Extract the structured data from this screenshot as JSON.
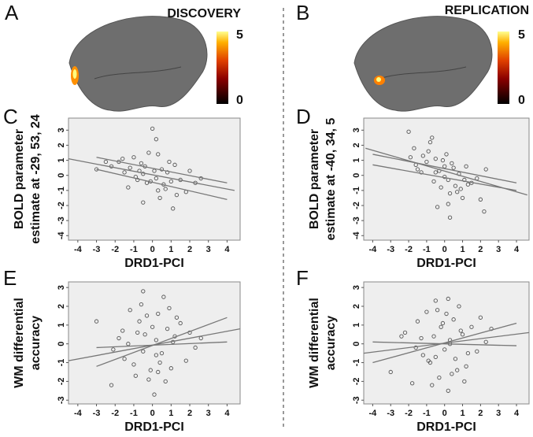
{
  "brain_maps": [
    {
      "letter": "A",
      "title": "DISCOVERY",
      "colorbar_ticks": [
        5,
        0
      ]
    },
    {
      "letter": "B",
      "title": "REPLICATION",
      "colorbar_ticks": [
        5,
        0
      ]
    }
  ],
  "chart_data": [
    {
      "type": "scatter",
      "letter": "C",
      "xlabel": "DRD1-PCI",
      "ylabel": [
        "BOLD parameter",
        "estimate at -29, 53, 24"
      ],
      "xlim": [
        -4.5,
        4.7
      ],
      "ylim": [
        -4.3,
        3.8
      ],
      "xticks": [
        -4,
        -3,
        -2,
        -1,
        0,
        1,
        2,
        3,
        4
      ],
      "yticks": [
        -4,
        -3,
        -2,
        -1,
        0,
        1,
        2,
        3
      ],
      "series": [
        {
          "color": "#555555",
          "x": [
            -3,
            -2.2,
            -1.8,
            -1.5,
            -1.2,
            -1,
            -0.8,
            -0.6,
            -0.5,
            -0.3,
            -0.2,
            0,
            0.1,
            0.2,
            0.3,
            0.5,
            0.6,
            0.8,
            1,
            1.2,
            1.5,
            1.8,
            2,
            2.3,
            -0.9,
            -0.4,
            0.4,
            0.9,
            -1.3,
            0.2,
            -0.7,
            1.3,
            -0.1,
            0.7,
            -1.6,
            2.6,
            -0.5,
            0.3,
            1.1,
            -2.5
          ],
          "values": [
            0.4,
            0.6,
            0.9,
            0.2,
            0.5,
            1.2,
            -0.3,
            0.8,
            0.1,
            -0.5,
            1.5,
            3.1,
            0.3,
            -0.2,
            -1,
            0.4,
            -0.6,
            0.2,
            -0.4,
            0.7,
            -0.3,
            -1.1,
            0.3,
            -0.5,
            -0.1,
            0.6,
            -1.5,
            0.9,
            -0.8,
            2.4,
            0.3,
            -1.3,
            -0.4,
            -0.9,
            1.1,
            -0.2,
            -1.8,
            1.4,
            -2.2,
            0.9
          ]
        }
      ],
      "lines": [
        {
          "color": "#777777",
          "x": [
            -4.5,
            4.4
          ],
          "values": [
            1.1,
            -1.0
          ]
        },
        {
          "color": "#777777",
          "x": [
            -3,
            4
          ],
          "values": [
            1.2,
            -0.5
          ]
        },
        {
          "color": "#777777",
          "x": [
            -3,
            4
          ],
          "values": [
            0.4,
            -1.6
          ]
        }
      ]
    },
    {
      "type": "scatter",
      "letter": "D",
      "xlabel": "DRD1-PCI",
      "ylabel": [
        "BOLD parameter",
        "estimate at -40, 34, 5"
      ],
      "xlim": [
        -4.5,
        4.7
      ],
      "ylim": [
        -4.3,
        3.8
      ],
      "xticks": [
        -4,
        -3,
        -2,
        -1,
        0,
        1,
        2,
        3,
        4
      ],
      "yticks": [
        -4,
        -3,
        -2,
        -1,
        0,
        1,
        2,
        3
      ],
      "series": [
        {
          "color": "#555555",
          "x": [
            -2,
            -1.7,
            -1.5,
            -1.2,
            -1,
            -0.8,
            -0.6,
            -0.5,
            -0.3,
            -0.2,
            0,
            0.1,
            0.2,
            0.3,
            0.5,
            0.6,
            0.8,
            1,
            1.2,
            1.5,
            1.8,
            2,
            2.3,
            -0.9,
            -0.4,
            0.4,
            0.9,
            -1.3,
            0.2,
            -0.7,
            1.3,
            -0.1,
            0.7,
            -1.6,
            2.2,
            -0.5,
            0.3,
            1.1,
            -1.9,
            0.0
          ],
          "values": [
            2.9,
            1.8,
            0.4,
            1.3,
            0.9,
            2.2,
            -0.4,
            1.1,
            0.3,
            -0.8,
            0.6,
            1.4,
            -0.3,
            -1.2,
            0.5,
            -0.7,
            0.1,
            -1.5,
            0.6,
            -0.5,
            -0.2,
            -1.6,
            0.4,
            1.6,
            -2.1,
            0.8,
            -0.9,
            0.2,
            -1.9,
            2.5,
            -0.6,
            1.0,
            -1.1,
            0.7,
            -2.4,
            0.2,
            -2.8,
            -0.3,
            1.2,
            -0.1
          ]
        }
      ],
      "lines": [
        {
          "color": "#777777",
          "x": [
            -4.4,
            4.6
          ],
          "values": [
            1.8,
            -1.3
          ]
        },
        {
          "color": "#777777",
          "x": [
            -4,
            4
          ],
          "values": [
            1.4,
            -0.5
          ]
        },
        {
          "color": "#777777",
          "x": [
            -4,
            4
          ],
          "values": [
            0.7,
            -1.0
          ]
        }
      ]
    },
    {
      "type": "scatter",
      "letter": "E",
      "xlabel": "DRD1-PCI",
      "ylabel": [
        "WM differential",
        "accuracy"
      ],
      "xlim": [
        -4.5,
        4.7
      ],
      "ylim": [
        -3.2,
        3.3
      ],
      "xticks": [
        -4,
        -3,
        -2,
        -1,
        0,
        1,
        2,
        3,
        4
      ],
      "yticks": [
        -3,
        -2,
        -1,
        0,
        1,
        2,
        3
      ],
      "series": [
        {
          "color": "#555555",
          "x": [
            -3,
            -2.2,
            -1.8,
            -1.5,
            -1.2,
            -1,
            -0.8,
            -0.6,
            -0.5,
            -0.3,
            -0.2,
            0,
            0.1,
            0.2,
            0.3,
            0.5,
            0.6,
            0.8,
            1,
            1.2,
            1.5,
            1.8,
            2,
            2.3,
            -0.9,
            -0.4,
            0.4,
            0.9,
            -1.3,
            0.2,
            -0.7,
            1.3,
            -0.1,
            0.7,
            -1.6,
            2.6,
            -0.5,
            0.3,
            1.1,
            -2.1
          ],
          "values": [
            1.2,
            -2.2,
            0.3,
            -0.8,
            1.8,
            -1.1,
            0.6,
            2.1,
            -0.4,
            1.5,
            -1.9,
            0.9,
            -2.7,
            0.2,
            1.6,
            -0.5,
            2.5,
            0.8,
            -1.3,
            0.4,
            1.1,
            -0.9,
            0.6,
            -0.2,
            -1.7,
            0.5,
            -1.0,
            1.9,
            0.0,
            -0.6,
            1.2,
            1.4,
            -1.4,
            -2.0,
            0.7,
            0.3,
            2.8,
            -1.5,
            0.1,
            -0.3
          ]
        }
      ],
      "lines": [
        {
          "color": "#777777",
          "x": [
            -4.5,
            4.7
          ],
          "values": [
            -0.9,
            0.8
          ]
        },
        {
          "color": "#777777",
          "x": [
            -3,
            4
          ],
          "values": [
            -1.2,
            1.4
          ]
        },
        {
          "color": "#777777",
          "x": [
            -3,
            4
          ],
          "values": [
            -0.2,
            0.1
          ]
        }
      ]
    },
    {
      "type": "scatter",
      "letter": "F",
      "xlabel": "DRD1-PCI",
      "ylabel": [
        "WM differential",
        "accuracy"
      ],
      "xlim": [
        -4.5,
        4.7
      ],
      "ylim": [
        -3.2,
        3.3
      ],
      "xticks": [
        -4,
        -3,
        -2,
        -1,
        0,
        1,
        2,
        3,
        4
      ],
      "yticks": [
        -3,
        -2,
        -1,
        0,
        1,
        2,
        3
      ],
      "series": [
        {
          "color": "#555555",
          "x": [
            -3,
            -2.2,
            -1.8,
            -1.5,
            -1.2,
            -1,
            -0.8,
            -0.6,
            -0.5,
            -0.3,
            -0.2,
            0,
            0.1,
            0.2,
            0.3,
            0.5,
            0.6,
            0.8,
            1,
            1.2,
            1.5,
            1.8,
            2,
            2.3,
            -0.9,
            -0.4,
            0.4,
            0.9,
            -1.3,
            0.2,
            -0.7,
            1.3,
            -0.1,
            0.7,
            -1.6,
            2.6,
            -0.5,
            0.3,
            1.1,
            -2.4
          ],
          "values": [
            -1.5,
            0.6,
            -2.1,
            1.2,
            -0.6,
            1.7,
            -1.0,
            0.4,
            2.3,
            -1.8,
            0.9,
            -0.3,
            1.6,
            -2.5,
            0.2,
            1.3,
            -0.8,
            2.0,
            0.5,
            -1.2,
            0.9,
            -0.4,
            1.4,
            0.1,
            -0.9,
            1.8,
            -1.6,
            0.7,
            0.3,
            2.4,
            -2.2,
            -0.5,
            1.1,
            -1.4,
            -0.2,
            0.8,
            -0.7,
            0.0,
            -2.0,
            0.4
          ]
        }
      ],
      "lines": [
        {
          "color": "#777777",
          "x": [
            -4.5,
            4.7
          ],
          "values": [
            -0.5,
            0.6
          ]
        },
        {
          "color": "#777777",
          "x": [
            -4,
            4
          ],
          "values": [
            -1.0,
            1.1
          ]
        },
        {
          "color": "#777777",
          "x": [
            -4,
            4
          ],
          "values": [
            0.1,
            -0.1
          ]
        }
      ]
    }
  ]
}
